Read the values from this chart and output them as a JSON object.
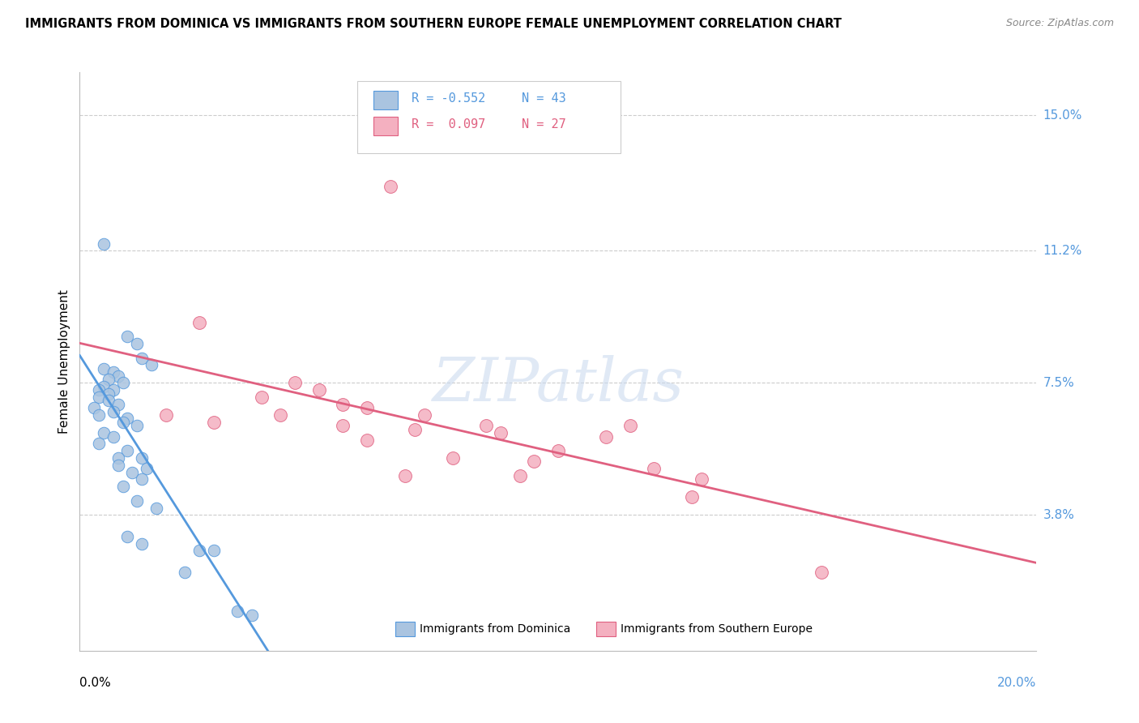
{
  "title": "IMMIGRANTS FROM DOMINICA VS IMMIGRANTS FROM SOUTHERN EUROPE FEMALE UNEMPLOYMENT CORRELATION CHART",
  "source": "Source: ZipAtlas.com",
  "ylabel": "Female Unemployment",
  "ytick_labels": [
    "15.0%",
    "11.2%",
    "7.5%",
    "3.8%"
  ],
  "ytick_values": [
    0.15,
    0.112,
    0.075,
    0.038
  ],
  "xmin": 0.0,
  "xmax": 0.2,
  "ymin": 0.0,
  "ymax": 0.162,
  "color_blue": "#aac4e0",
  "color_pink": "#f4b0c0",
  "line_blue": "#5599dd",
  "line_pink": "#e06080",
  "watermark": "ZIPatlas",
  "blue_points": [
    [
      0.005,
      0.114
    ],
    [
      0.01,
      0.088
    ],
    [
      0.012,
      0.086
    ],
    [
      0.013,
      0.082
    ],
    [
      0.015,
      0.08
    ],
    [
      0.005,
      0.079
    ],
    [
      0.007,
      0.078
    ],
    [
      0.008,
      0.077
    ],
    [
      0.006,
      0.076
    ],
    [
      0.009,
      0.075
    ],
    [
      0.005,
      0.074
    ],
    [
      0.007,
      0.073
    ],
    [
      0.004,
      0.073
    ],
    [
      0.006,
      0.072
    ],
    [
      0.004,
      0.071
    ],
    [
      0.006,
      0.07
    ],
    [
      0.008,
      0.069
    ],
    [
      0.003,
      0.068
    ],
    [
      0.007,
      0.067
    ],
    [
      0.004,
      0.066
    ],
    [
      0.01,
      0.065
    ],
    [
      0.009,
      0.064
    ],
    [
      0.012,
      0.063
    ],
    [
      0.005,
      0.061
    ],
    [
      0.007,
      0.06
    ],
    [
      0.004,
      0.058
    ],
    [
      0.01,
      0.056
    ],
    [
      0.008,
      0.054
    ],
    [
      0.013,
      0.054
    ],
    [
      0.008,
      0.052
    ],
    [
      0.014,
      0.051
    ],
    [
      0.011,
      0.05
    ],
    [
      0.013,
      0.048
    ],
    [
      0.009,
      0.046
    ],
    [
      0.012,
      0.042
    ],
    [
      0.016,
      0.04
    ],
    [
      0.01,
      0.032
    ],
    [
      0.013,
      0.03
    ],
    [
      0.025,
      0.028
    ],
    [
      0.028,
      0.028
    ],
    [
      0.022,
      0.022
    ],
    [
      0.033,
      0.011
    ],
    [
      0.036,
      0.01
    ]
  ],
  "pink_points": [
    [
      0.065,
      0.13
    ],
    [
      0.025,
      0.092
    ],
    [
      0.045,
      0.075
    ],
    [
      0.05,
      0.073
    ],
    [
      0.038,
      0.071
    ],
    [
      0.055,
      0.069
    ],
    [
      0.06,
      0.068
    ],
    [
      0.018,
      0.066
    ],
    [
      0.042,
      0.066
    ],
    [
      0.072,
      0.066
    ],
    [
      0.028,
      0.064
    ],
    [
      0.055,
      0.063
    ],
    [
      0.085,
      0.063
    ],
    [
      0.115,
      0.063
    ],
    [
      0.07,
      0.062
    ],
    [
      0.088,
      0.061
    ],
    [
      0.11,
      0.06
    ],
    [
      0.06,
      0.059
    ],
    [
      0.1,
      0.056
    ],
    [
      0.078,
      0.054
    ],
    [
      0.095,
      0.053
    ],
    [
      0.12,
      0.051
    ],
    [
      0.068,
      0.049
    ],
    [
      0.092,
      0.049
    ],
    [
      0.13,
      0.048
    ],
    [
      0.155,
      0.022
    ],
    [
      0.128,
      0.043
    ]
  ]
}
